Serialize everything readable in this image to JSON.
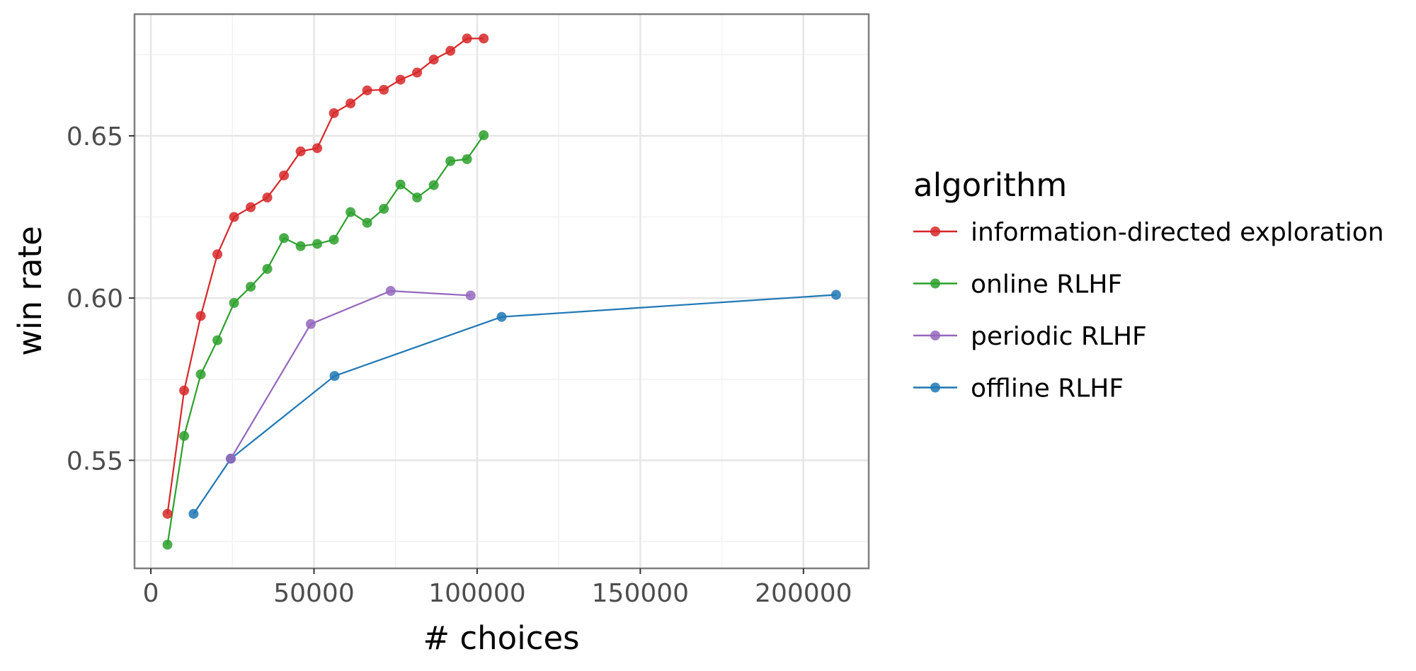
{
  "chart_data": {
    "type": "line",
    "xlabel": "# choices",
    "ylabel": "win rate",
    "xlim": [
      -5000,
      220000
    ],
    "ylim": [
      0.5167,
      0.6875
    ],
    "x_ticks": [
      0,
      50000,
      100000,
      150000,
      200000
    ],
    "x_tick_labels": [
      "0",
      "50000",
      "100000",
      "150000",
      "200000"
    ],
    "x_minor_ticks": [
      25000,
      75000,
      125000,
      175000
    ],
    "y_ticks": [
      0.55,
      0.6,
      0.65
    ],
    "y_tick_labels": [
      "0.55",
      "0.60",
      "0.65"
    ],
    "y_minor_ticks": [
      0.525,
      0.575,
      0.625,
      0.675
    ],
    "grid": true,
    "legend": {
      "title": "algorithm",
      "position": "right"
    },
    "series": [
      {
        "name": "information-directed exploration",
        "color": "#d62728",
        "x": [
          5100,
          10200,
          15300,
          20400,
          25500,
          30600,
          35700,
          40800,
          45900,
          51000,
          56100,
          61200,
          66300,
          71400,
          76500,
          81600,
          86700,
          91800,
          96900,
          102000
        ],
        "y": [
          0.5335,
          0.5715,
          0.5945,
          0.6135,
          0.625,
          0.628,
          0.631,
          0.6378,
          0.6452,
          0.6462,
          0.657,
          0.66,
          0.664,
          0.6642,
          0.6673,
          0.6695,
          0.6735,
          0.6762,
          0.68,
          0.68
        ]
      },
      {
        "name": "online RLHF",
        "color": "#2ca02c",
        "x": [
          5100,
          10200,
          15300,
          20400,
          25500,
          30600,
          35700,
          40800,
          45900,
          51000,
          56100,
          61200,
          66300,
          71400,
          76500,
          81600,
          86700,
          91800,
          96900,
          102000
        ],
        "y": [
          0.524,
          0.5575,
          0.5765,
          0.587,
          0.5985,
          0.6035,
          0.609,
          0.6185,
          0.616,
          0.6167,
          0.618,
          0.6265,
          0.6232,
          0.6275,
          0.635,
          0.631,
          0.6348,
          0.6422,
          0.6428,
          0.6502
        ]
      },
      {
        "name": "periodic RLHF",
        "color": "#9467bd",
        "x": [
          24500,
          49000,
          73500,
          98000
        ],
        "y": [
          0.5505,
          0.592,
          0.6022,
          0.6008
        ]
      },
      {
        "name": "offline RLHF",
        "color": "#1f77b4",
        "x": [
          13100,
          24500,
          56300,
          107500,
          210000
        ],
        "y": [
          0.5335,
          0.5505,
          0.576,
          0.5942,
          0.601
        ]
      }
    ]
  }
}
